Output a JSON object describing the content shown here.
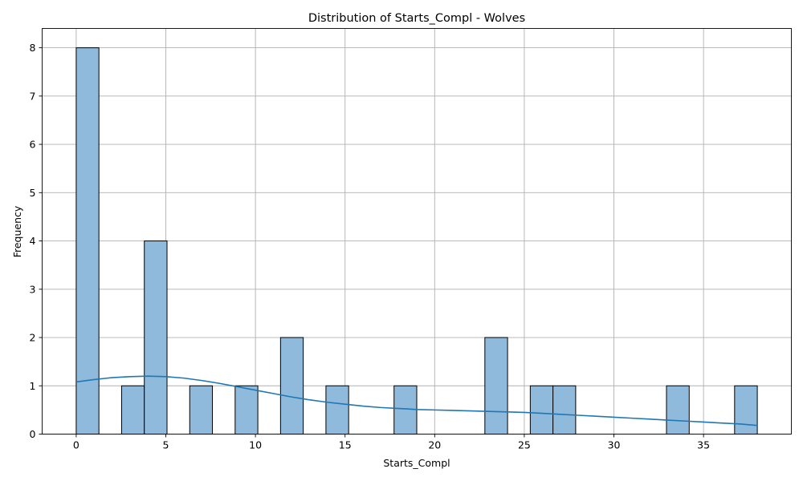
{
  "chart_data": {
    "type": "bar",
    "title": "Distribution of Starts_Compl - Wolves",
    "xlabel": "Starts_Compl",
    "ylabel": "Frequency",
    "xlim": [
      -1.9,
      39.9
    ],
    "ylim": [
      0,
      8.4
    ],
    "xticks": [
      0,
      5,
      10,
      15,
      20,
      25,
      30,
      35
    ],
    "yticks": [
      0,
      1,
      2,
      3,
      4,
      5,
      6,
      7,
      8
    ],
    "grid": true,
    "bar_color": "#8fbadc",
    "kde_color": "#1f77b4",
    "bins": [
      {
        "x0": 0.0,
        "x1": 1.2667,
        "count": 8
      },
      {
        "x0": 1.2667,
        "x1": 2.5333,
        "count": 0
      },
      {
        "x0": 2.5333,
        "x1": 3.8,
        "count": 1
      },
      {
        "x0": 3.8,
        "x1": 5.0667,
        "count": 4
      },
      {
        "x0": 5.0667,
        "x1": 6.3333,
        "count": 0
      },
      {
        "x0": 6.3333,
        "x1": 7.6,
        "count": 1
      },
      {
        "x0": 7.6,
        "x1": 8.8667,
        "count": 0
      },
      {
        "x0": 8.8667,
        "x1": 10.1333,
        "count": 1
      },
      {
        "x0": 10.1333,
        "x1": 11.4,
        "count": 0
      },
      {
        "x0": 11.4,
        "x1": 12.6667,
        "count": 2
      },
      {
        "x0": 12.6667,
        "x1": 13.9333,
        "count": 0
      },
      {
        "x0": 13.9333,
        "x1": 15.2,
        "count": 1
      },
      {
        "x0": 15.2,
        "x1": 16.4667,
        "count": 0
      },
      {
        "x0": 16.4667,
        "x1": 17.7333,
        "count": 0
      },
      {
        "x0": 17.7333,
        "x1": 19.0,
        "count": 1
      },
      {
        "x0": 19.0,
        "x1": 20.2667,
        "count": 0
      },
      {
        "x0": 20.2667,
        "x1": 21.5333,
        "count": 0
      },
      {
        "x0": 21.5333,
        "x1": 22.8,
        "count": 0
      },
      {
        "x0": 22.8,
        "x1": 24.0667,
        "count": 2
      },
      {
        "x0": 24.0667,
        "x1": 25.3333,
        "count": 0
      },
      {
        "x0": 25.3333,
        "x1": 26.6,
        "count": 1
      },
      {
        "x0": 26.6,
        "x1": 27.8667,
        "count": 1
      },
      {
        "x0": 27.8667,
        "x1": 29.1333,
        "count": 0
      },
      {
        "x0": 29.1333,
        "x1": 30.4,
        "count": 0
      },
      {
        "x0": 30.4,
        "x1": 31.6667,
        "count": 0
      },
      {
        "x0": 31.6667,
        "x1": 32.9333,
        "count": 0
      },
      {
        "x0": 32.9333,
        "x1": 34.2,
        "count": 1
      },
      {
        "x0": 34.2,
        "x1": 35.4667,
        "count": 0
      },
      {
        "x0": 35.4667,
        "x1": 36.7333,
        "count": 0
      },
      {
        "x0": 36.7333,
        "x1": 38.0,
        "count": 1
      }
    ],
    "kde": {
      "x": [
        0,
        1,
        2,
        3,
        4,
        5,
        6,
        7,
        8,
        9,
        10,
        11,
        12,
        13,
        14,
        15,
        16,
        17,
        18,
        19,
        20,
        21,
        22,
        23,
        24,
        25,
        26,
        27,
        28,
        29,
        30,
        31,
        32,
        33,
        34,
        35,
        36,
        37,
        38
      ],
      "y": [
        1.08,
        1.13,
        1.17,
        1.19,
        1.2,
        1.19,
        1.16,
        1.11,
        1.05,
        0.98,
        0.91,
        0.84,
        0.77,
        0.71,
        0.66,
        0.62,
        0.58,
        0.55,
        0.53,
        0.51,
        0.5,
        0.49,
        0.48,
        0.47,
        0.46,
        0.45,
        0.43,
        0.41,
        0.39,
        0.37,
        0.35,
        0.33,
        0.31,
        0.29,
        0.27,
        0.25,
        0.23,
        0.21,
        0.18
      ]
    }
  }
}
